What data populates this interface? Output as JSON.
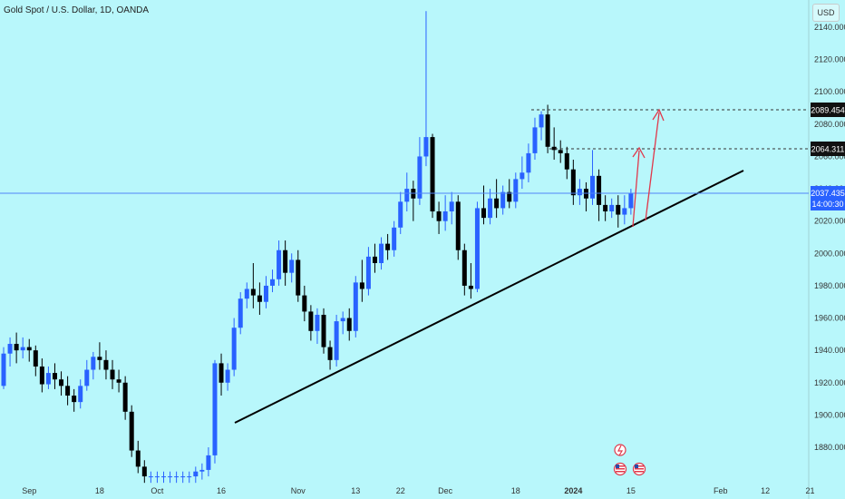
{
  "title": "Gold Spot / U.S. Dollar, 1D, OANDA",
  "currency_button": "USD",
  "price_labels": {
    "upper_target": "2089.454",
    "lower_target": "2064.311",
    "last_price": "2037.435",
    "countdown": "14:00:30"
  },
  "colors": {
    "background": "#b8f7fb",
    "up_candle": "#2962ff",
    "down_candle": "#000000",
    "trendline": "#000000",
    "arrow": "#e0384b",
    "last_price_box": "#2962ff"
  },
  "event_icons": [
    "lightning-icon",
    "us-flag-icon",
    "us-flag-icon"
  ],
  "chart_data": {
    "type": "candlestick",
    "ylim": [
      1862,
      2148
    ],
    "y_ticks": [
      1880,
      1900,
      1920,
      1940,
      1960,
      1980,
      2000,
      2020,
      2040,
      2060,
      2080,
      2100,
      2120,
      2140
    ],
    "y_tick_labels": [
      "1880.000",
      "1900.000",
      "1920.000",
      "1940.000",
      "1960.000",
      "1980.000",
      "2000.000",
      "2020.000",
      "2040.000",
      "2060.000",
      "2080.000",
      "2100.000",
      "2120.000",
      "2140.000"
    ],
    "x_ticks": [
      {
        "label": "Sep",
        "x": 4
      },
      {
        "label": "18",
        "x": 15
      },
      {
        "label": "Oct",
        "x": 24
      },
      {
        "label": "16",
        "x": 34
      },
      {
        "label": "Nov",
        "x": 46
      },
      {
        "label": "13",
        "x": 55
      },
      {
        "label": "22",
        "x": 62
      },
      {
        "label": "Dec",
        "x": 69
      },
      {
        "label": "18",
        "x": 80
      },
      {
        "label": "2024",
        "x": 89
      },
      {
        "label": "15",
        "x": 98
      },
      {
        "label": "Feb",
        "x": 112
      },
      {
        "label": "12",
        "x": 119
      },
      {
        "label": "21",
        "x": 126
      }
    ],
    "candles": [
      [
        1918,
        1938,
        1916,
        1942
      ],
      [
        1938,
        1944,
        1930,
        1948
      ],
      [
        1944,
        1940,
        1932,
        1951
      ],
      [
        1940,
        1942,
        1935,
        1948
      ],
      [
        1942,
        1940,
        1933,
        1947
      ],
      [
        1940,
        1930,
        1924,
        1943
      ],
      [
        1930,
        1919,
        1914,
        1935
      ],
      [
        1919,
        1926,
        1916,
        1930
      ],
      [
        1926,
        1922,
        1916,
        1932
      ],
      [
        1922,
        1918,
        1912,
        1927
      ],
      [
        1918,
        1912,
        1906,
        1924
      ],
      [
        1912,
        1908,
        1902,
        1916
      ],
      [
        1908,
        1918,
        1904,
        1922
      ],
      [
        1918,
        1928,
        1915,
        1934
      ],
      [
        1928,
        1936,
        1922,
        1939
      ],
      [
        1936,
        1934,
        1928,
        1945
      ],
      [
        1934,
        1928,
        1922,
        1940
      ],
      [
        1928,
        1922,
        1916,
        1934
      ],
      [
        1922,
        1920,
        1914,
        1928
      ],
      [
        1920,
        1902,
        1897,
        1924
      ],
      [
        1902,
        1878,
        1874,
        1906
      ],
      [
        1878,
        1868,
        1864,
        1884
      ],
      [
        1868,
        1862,
        1858,
        1872
      ],
      [
        1862,
        1862,
        1858,
        1865
      ],
      [
        1862,
        1862,
        1858,
        1865
      ],
      [
        1862,
        1862,
        1858,
        1865
      ],
      [
        1862,
        1862,
        1858,
        1865
      ],
      [
        1862,
        1862,
        1858,
        1865
      ],
      [
        1862,
        1862,
        1858,
        1865
      ],
      [
        1862,
        1862,
        1858,
        1865
      ],
      [
        1862,
        1865,
        1858,
        1868
      ],
      [
        1865,
        1866,
        1860,
        1870
      ],
      [
        1866,
        1875,
        1862,
        1880
      ],
      [
        1875,
        1932,
        1870,
        1934
      ],
      [
        1932,
        1920,
        1912,
        1938
      ],
      [
        1920,
        1928,
        1915,
        1932
      ],
      [
        1928,
        1954,
        1924,
        1960
      ],
      [
        1954,
        1972,
        1950,
        1976
      ],
      [
        1972,
        1978,
        1966,
        1982
      ],
      [
        1978,
        1974,
        1966,
        1994
      ],
      [
        1974,
        1970,
        1962,
        1982
      ],
      [
        1970,
        1980,
        1966,
        1986
      ],
      [
        1980,
        1984,
        1976,
        1990
      ],
      [
        1984,
        2002,
        1980,
        2008
      ],
      [
        2002,
        1988,
        1980,
        2008
      ],
      [
        1988,
        1996,
        1982,
        2000
      ],
      [
        1996,
        1974,
        1970,
        2002
      ],
      [
        1974,
        1964,
        1958,
        1980
      ],
      [
        1964,
        1952,
        1946,
        1968
      ],
      [
        1952,
        1962,
        1944,
        1966
      ],
      [
        1962,
        1942,
        1938,
        1966
      ],
      [
        1942,
        1934,
        1928,
        1946
      ],
      [
        1934,
        1958,
        1930,
        1962
      ],
      [
        1958,
        1960,
        1950,
        1964
      ],
      [
        1960,
        1952,
        1946,
        1966
      ],
      [
        1952,
        1982,
        1948,
        1986
      ],
      [
        1982,
        1978,
        1970,
        1996
      ],
      [
        1978,
        1998,
        1974,
        2004
      ],
      [
        1998,
        1994,
        1988,
        2006
      ],
      [
        1994,
        2006,
        1990,
        2010
      ],
      [
        2006,
        2002,
        1996,
        2012
      ],
      [
        2002,
        2016,
        1998,
        2020
      ],
      [
        2016,
        2032,
        2012,
        2038
      ],
      [
        2032,
        2040,
        2026,
        2050
      ],
      [
        2040,
        2034,
        2020,
        2045
      ],
      [
        2034,
        2060,
        2030,
        2072
      ],
      [
        2060,
        2072,
        2054,
        2150
      ],
      [
        2072,
        2026,
        2022,
        2074
      ],
      [
        2026,
        2020,
        2012,
        2032
      ],
      [
        2020,
        2026,
        2014,
        2036
      ],
      [
        2026,
        2032,
        2018,
        2038
      ],
      [
        2032,
        2002,
        1996,
        2036
      ],
      [
        2002,
        1980,
        1974,
        2006
      ],
      [
        1980,
        1978,
        1972,
        1994
      ],
      [
        1978,
        2028,
        1976,
        2032
      ],
      [
        2028,
        2022,
        2018,
        2042
      ],
      [
        2022,
        2034,
        2018,
        2040
      ],
      [
        2034,
        2028,
        2022,
        2046
      ],
      [
        2028,
        2038,
        2024,
        2042
      ],
      [
        2038,
        2032,
        2028,
        2046
      ],
      [
        2032,
        2046,
        2028,
        2050
      ],
      [
        2046,
        2050,
        2040,
        2060
      ],
      [
        2050,
        2062,
        2044,
        2068
      ],
      [
        2062,
        2078,
        2058,
        2084
      ],
      [
        2078,
        2086,
        2070,
        2088
      ],
      [
        2086,
        2066,
        2062,
        2092
      ],
      [
        2066,
        2064,
        2058,
        2078
      ],
      [
        2064,
        2062,
        2056,
        2070
      ],
      [
        2062,
        2052,
        2046,
        2066
      ],
      [
        2052,
        2036,
        2030,
        2058
      ],
      [
        2036,
        2040,
        2030,
        2046
      ],
      [
        2040,
        2034,
        2026,
        2044
      ],
      [
        2034,
        2048,
        2030,
        2064
      ],
      [
        2048,
        2030,
        2020,
        2052
      ],
      [
        2030,
        2026,
        2020,
        2036
      ],
      [
        2026,
        2030,
        2022,
        2034
      ],
      [
        2030,
        2024,
        2016,
        2036
      ],
      [
        2024,
        2028,
        2018,
        2036
      ],
      [
        2028,
        2037,
        2024,
        2040
      ]
    ]
  }
}
